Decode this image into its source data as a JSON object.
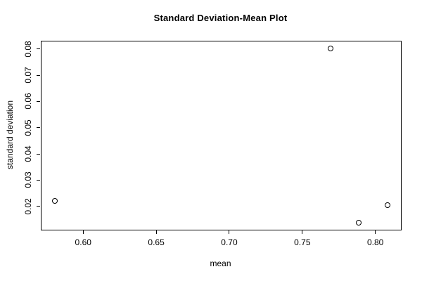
{
  "chart_data": {
    "type": "scatter",
    "title": "Standard Deviation-Mean Plot",
    "xlabel": "mean",
    "ylabel": "standard deviation",
    "marker": "open-circle",
    "grid": false,
    "legend": null,
    "xlim": [
      0.571,
      0.817
    ],
    "ylim": [
      0.0113,
      0.0832
    ],
    "x_ticks": [
      0.6,
      0.65,
      0.7,
      0.75,
      0.8
    ],
    "x_tick_labels": [
      "0.60",
      "0.65",
      "0.70",
      "0.75",
      "0.80"
    ],
    "y_ticks": [
      0.02,
      0.03,
      0.04,
      0.05,
      0.06,
      0.07,
      0.08
    ],
    "y_tick_labels": [
      "0.02",
      "0.03",
      "0.04",
      "0.05",
      "0.06",
      "0.07",
      "0.08"
    ],
    "points": [
      {
        "mean": 0.58,
        "sd": 0.0222
      },
      {
        "mean": 0.769,
        "sd": 0.0805
      },
      {
        "mean": 0.788,
        "sd": 0.014
      },
      {
        "mean": 0.808,
        "sd": 0.0206
      }
    ],
    "colors": {
      "foreground": "#000000",
      "background": "#ffffff"
    }
  }
}
